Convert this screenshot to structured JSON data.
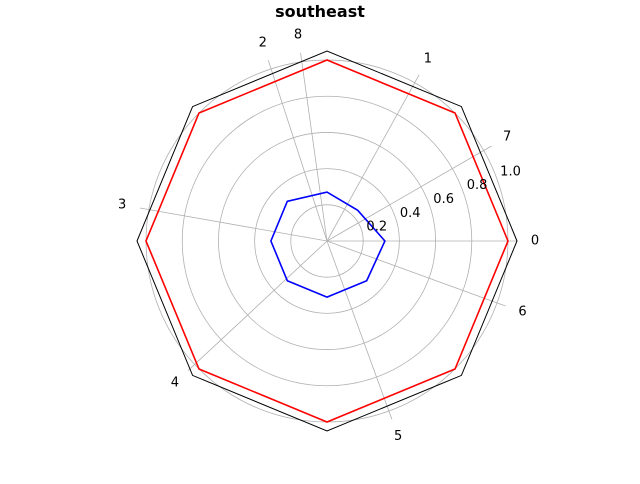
{
  "chart_data": {
    "type": "radar",
    "title": "southeast",
    "spoke_labels": [
      "0",
      "1",
      "2",
      "3",
      "4",
      "5",
      "6",
      "7",
      "8"
    ],
    "spoke_angles_deg": [
      0,
      61,
      108,
      170,
      223,
      290,
      340,
      30,
      98
    ],
    "rmax": 1.05,
    "r_ticks": [
      0.2,
      0.4,
      0.6,
      0.8,
      1.0
    ],
    "r_tick_labels": [
      "0.2",
      "0.4",
      "0.6",
      "0.8",
      "1.0"
    ],
    "r_label_angle_deg": 22.5,
    "grid": true,
    "series": [
      {
        "color": "#ff0000",
        "values": [
          1.0,
          1.0,
          1.0,
          1.0,
          1.0,
          1.0,
          1.0,
          1.0
        ]
      },
      {
        "color": "#0000ff",
        "values": [
          0.32,
          0.24,
          0.27,
          0.31,
          0.31,
          0.31,
          0.31,
          0.31
        ]
      }
    ],
    "series_vertex_angles_deg": [
      0,
      45,
      90,
      135,
      180,
      225,
      270,
      315
    ]
  }
}
